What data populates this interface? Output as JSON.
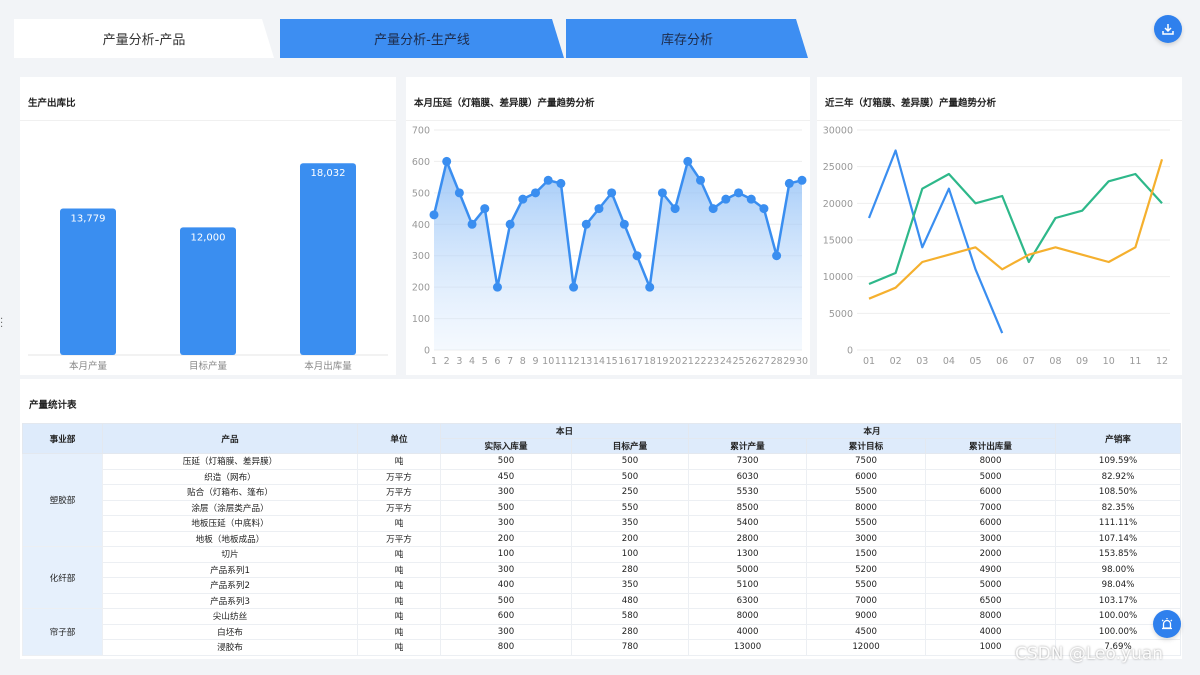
{
  "tabs": [
    {
      "label": "产量分析-产品",
      "active": true
    },
    {
      "label": "产量分析-生产线",
      "active": false
    },
    {
      "label": "库存分析",
      "active": false
    }
  ],
  "icons": {
    "download": "download-icon",
    "alarm": "alarm-icon"
  },
  "colors": {
    "accent": "#2f80ed",
    "bar": "#3a8ef0",
    "green": "#2eb88a",
    "orange": "#f5b02e"
  },
  "chart_data": [
    {
      "type": "bar",
      "title": "生产出库比",
      "categories": [
        "本月产量",
        "目标产量",
        "本月出库量"
      ],
      "values": [
        13779,
        12000,
        18032
      ],
      "value_labels": [
        "13,779",
        "12,000",
        "18,032"
      ],
      "ylim": [
        0,
        22000
      ]
    },
    {
      "type": "area",
      "title": "本月压延（灯箱膜、差异膜）产量趋势分析",
      "x": [
        "1",
        "2",
        "3",
        "4",
        "5",
        "6",
        "7",
        "8",
        "9",
        "10",
        "11",
        "12",
        "13",
        "14",
        "15",
        "16",
        "17",
        "18",
        "19",
        "20",
        "21",
        "22",
        "23",
        "24",
        "25",
        "26",
        "27",
        "28",
        "29",
        "30"
      ],
      "values": [
        430,
        600,
        500,
        400,
        450,
        200,
        400,
        480,
        500,
        540,
        530,
        200,
        400,
        450,
        500,
        400,
        300,
        200,
        500,
        450,
        600,
        540,
        450,
        480,
        500,
        480,
        450,
        300,
        530,
        540
      ],
      "y_ticks": [
        "0",
        "100",
        "200",
        "300",
        "400",
        "500",
        "600",
        "700"
      ],
      "ylim": [
        0,
        700
      ]
    },
    {
      "type": "line",
      "title": "近三年（灯箱膜、差异膜）产量趋势分析",
      "x": [
        "01",
        "02",
        "03",
        "04",
        "05",
        "06",
        "07",
        "08",
        "09",
        "10",
        "11",
        "12"
      ],
      "y_ticks": [
        "0",
        "5000",
        "10000",
        "15000",
        "20000",
        "25000",
        "30000"
      ],
      "ylim": [
        0,
        30000
      ],
      "series": [
        {
          "color": "#3a8ef0",
          "values": [
            18000,
            27200,
            14000,
            22000,
            11000,
            2300,
            null,
            null,
            null,
            null,
            null,
            null
          ]
        },
        {
          "color": "#2eb88a",
          "values": [
            9000,
            10500,
            22000,
            24000,
            20000,
            21000,
            12000,
            18000,
            19000,
            23000,
            24000,
            20000
          ]
        },
        {
          "color": "#f5b02e",
          "values": [
            7000,
            8500,
            12000,
            13000,
            14000,
            11000,
            13000,
            14000,
            13000,
            12000,
            14000,
            26000
          ]
        }
      ]
    }
  ],
  "table": {
    "title": "产量统计表",
    "headers": {
      "dept": "事业部",
      "product": "产品",
      "unit": "单位",
      "today": "本日",
      "month": "本月",
      "rate": "产销率",
      "actual_in": "实际入库量",
      "target": "目标产量",
      "cum_output": "累计产量",
      "cum_target": "累计目标",
      "cum_out": "累计出库量"
    },
    "groups": [
      {
        "name": "塑胶部",
        "rows": [
          [
            "压延（灯箱膜、差异膜）",
            "吨",
            "500",
            "500",
            "7300",
            "7500",
            "8000",
            "109.59%"
          ],
          [
            "织造（网布）",
            "万平方",
            "450",
            "500",
            "6030",
            "6000",
            "5000",
            "82.92%"
          ],
          [
            "贴合（灯箱布、篷布）",
            "万平方",
            "300",
            "250",
            "5530",
            "5500",
            "6000",
            "108.50%"
          ],
          [
            "涂层（涂层类产品）",
            "万平方",
            "500",
            "550",
            "8500",
            "8000",
            "7000",
            "82.35%"
          ],
          [
            "地板压延（中底料）",
            "吨",
            "300",
            "350",
            "5400",
            "5500",
            "6000",
            "111.11%"
          ],
          [
            "地板（地板成品）",
            "万平方",
            "200",
            "200",
            "2800",
            "3000",
            "3000",
            "107.14%"
          ]
        ]
      },
      {
        "name": "化纤部",
        "rows": [
          [
            "切片",
            "吨",
            "100",
            "100",
            "1300",
            "1500",
            "2000",
            "153.85%"
          ],
          [
            "产品系列1",
            "吨",
            "300",
            "280",
            "5000",
            "5200",
            "4900",
            "98.00%"
          ],
          [
            "产品系列2",
            "吨",
            "400",
            "350",
            "5100",
            "5500",
            "5000",
            "98.04%"
          ],
          [
            "产品系列3",
            "吨",
            "500",
            "480",
            "6300",
            "7000",
            "6500",
            "103.17%"
          ]
        ]
      },
      {
        "name": "帘子部",
        "rows": [
          [
            "尖山纺丝",
            "吨",
            "600",
            "580",
            "8000",
            "9000",
            "8000",
            "100.00%"
          ],
          [
            "白坯布",
            "吨",
            "300",
            "280",
            "4000",
            "4500",
            "4000",
            "100.00%"
          ],
          [
            "浸胶布",
            "吨",
            "800",
            "780",
            "13000",
            "12000",
            "1000",
            "7.69%"
          ]
        ]
      }
    ]
  },
  "watermark": "CSDN @Leo.yuan"
}
